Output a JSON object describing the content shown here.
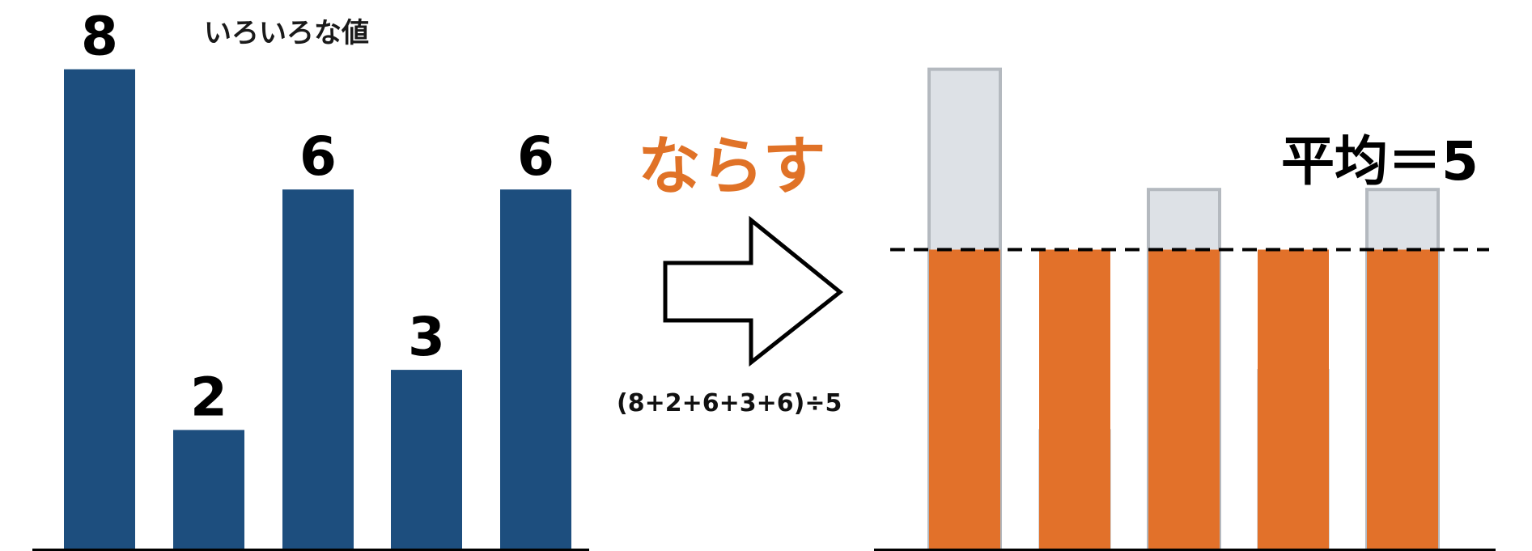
{
  "original_values_title": "いろいろな値",
  "process_label": "ならす",
  "formula": "(8+2+6+3+6)÷5",
  "average_label": "平均＝5",
  "values": [
    8,
    2,
    6,
    3,
    6
  ],
  "value_labels": [
    "8",
    "2",
    "6",
    "3",
    "6"
  ],
  "average": 5,
  "colors": {
    "original_bar": "#1d4e7e",
    "leveled_bar": "#e2712a",
    "excess_fill": "#dde1e6",
    "excess_stroke": "#b4b9bf",
    "process_label": "#e07227",
    "axis": "#000000"
  }
}
